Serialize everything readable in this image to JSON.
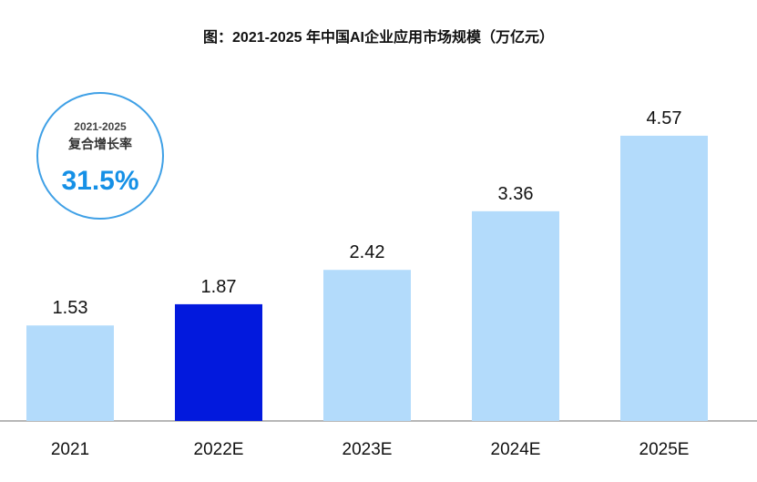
{
  "chart_data": {
    "type": "bar",
    "title": "图：2021-2025 年中国AI企业应用市场规模（万亿元）",
    "categories": [
      "2021",
      "2022E",
      "2023E",
      "2024E",
      "2025E"
    ],
    "values": [
      1.53,
      1.87,
      2.42,
      3.36,
      4.57
    ],
    "data_labels": [
      "1.53",
      "1.87",
      "2.42",
      "3.36",
      "4.57"
    ],
    "highlight_index": 1,
    "colors": {
      "default": "#b3dbfb",
      "highlight": "#0219dd",
      "axis": "#8c8c8c",
      "accent": "#3fa0e6"
    },
    "ylim": [
      0,
      5
    ],
    "grid": false,
    "annotation": {
      "period": "2021-2025",
      "label": "复合增长率",
      "value": "31.5%"
    }
  }
}
